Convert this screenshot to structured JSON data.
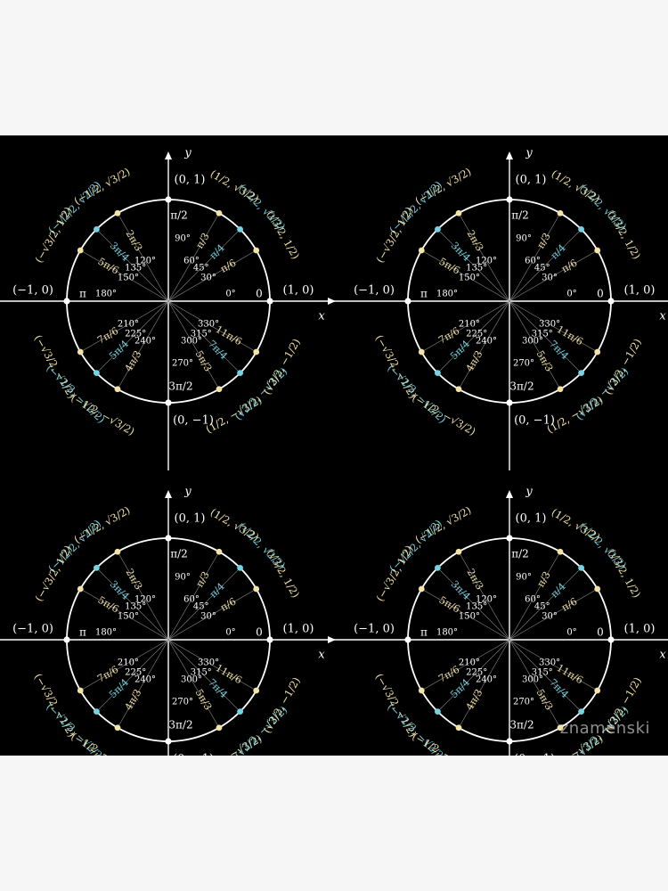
{
  "watermark": "znamenski",
  "colors": {
    "background": "#000000",
    "page": "#f6f6f6",
    "white": "#ffffff",
    "yellow": "#f4e3a6",
    "cyan": "#74d4e6"
  },
  "unit_circle": {
    "axis_x_label": "x",
    "axis_y_label": "y",
    "axis_points": [
      {
        "deg": 0,
        "coord": "(1, 0)",
        "rad": "0",
        "deg_label": "0°"
      },
      {
        "deg": 90,
        "coord": "(0, 1)",
        "rad": "π/2",
        "deg_label": "90°"
      },
      {
        "deg": 180,
        "coord": "(−1, 0)",
        "rad": "π",
        "deg_label": "180°"
      },
      {
        "deg": 270,
        "coord": "(0, −1)",
        "rad": "3π/2",
        "deg_label": "270°"
      }
    ],
    "points": [
      {
        "deg": 30,
        "rad": "π/6",
        "deg_label": "30°",
        "coord": "(√3/2, 1/2)",
        "group": "yellow"
      },
      {
        "deg": 45,
        "rad": "π/4",
        "deg_label": "45°",
        "coord": "(√2/2, √2/2)",
        "group": "cyan"
      },
      {
        "deg": 60,
        "rad": "π/3",
        "deg_label": "60°",
        "coord": "(1/2, √3/2)",
        "group": "yellow"
      },
      {
        "deg": 120,
        "rad": "2π/3",
        "deg_label": "120°",
        "coord": "(−1/2, √3/2)",
        "group": "yellow"
      },
      {
        "deg": 135,
        "rad": "3π/4",
        "deg_label": "135°",
        "coord": "(−√2/2, √2/2)",
        "group": "cyan"
      },
      {
        "deg": 150,
        "rad": "5π/6",
        "deg_label": "150°",
        "coord": "(−√3/2, 1/2)",
        "group": "yellow"
      },
      {
        "deg": 210,
        "rad": "7π/6",
        "deg_label": "210°",
        "coord": "(−√3/2, −1/2)",
        "group": "yellow"
      },
      {
        "deg": 225,
        "rad": "5π/4",
        "deg_label": "225°",
        "coord": "(−√2/2, −√2/2)",
        "group": "cyan"
      },
      {
        "deg": 240,
        "rad": "4π/3",
        "deg_label": "240°",
        "coord": "(−1/2, −√3/2)",
        "group": "yellow"
      },
      {
        "deg": 300,
        "rad": "5π/3",
        "deg_label": "300°",
        "coord": "(1/2, −√3/2)",
        "group": "yellow"
      },
      {
        "deg": 315,
        "rad": "7π/4",
        "deg_label": "315°",
        "coord": "(√2/2, −√2/2)",
        "group": "cyan"
      },
      {
        "deg": 330,
        "rad": "11π/6",
        "deg_label": "330°",
        "coord": "(√3/2, −1/2)",
        "group": "yellow"
      }
    ]
  }
}
